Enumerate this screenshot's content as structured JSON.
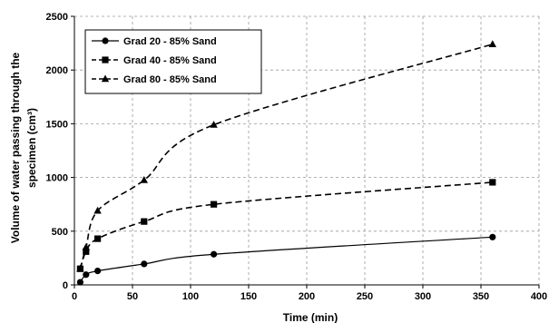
{
  "chart_data": {
    "type": "line",
    "xlabel": "Time (min)",
    "ylabel_line1": "Volume of water passing through the",
    "ylabel_line2": "specimen  (cm³)",
    "xlim": [
      0,
      400
    ],
    "ylim": [
      0,
      2500
    ],
    "x_ticks": [
      0,
      50,
      100,
      150,
      200,
      250,
      300,
      350,
      400
    ],
    "y_ticks": [
      0,
      500,
      1000,
      1500,
      2000,
      2500
    ],
    "grid": true,
    "legend_position": "top-left",
    "series": [
      {
        "name": "Grad 20 - 85% Sand",
        "marker": "circle",
        "line_style": "solid",
        "x": [
          5,
          10,
          20,
          60,
          120,
          360
        ],
        "y": [
          25,
          95,
          130,
          195,
          285,
          445
        ]
      },
      {
        "name": "Grad 40 - 85% Sand",
        "marker": "square",
        "line_style": "dashed",
        "x": [
          5,
          10,
          20,
          60,
          120,
          360
        ],
        "y": [
          150,
          310,
          430,
          590,
          750,
          955
        ]
      },
      {
        "name": "Grad 80 - 85% Sand",
        "marker": "triangle",
        "line_style": "dashed",
        "x": [
          5,
          10,
          20,
          60,
          120,
          360
        ],
        "y": [
          150,
          350,
          690,
          975,
          1490,
          2240
        ]
      }
    ]
  }
}
